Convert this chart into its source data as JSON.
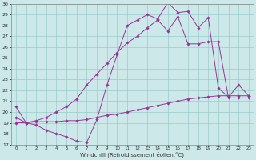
{
  "xlabel": "Windchill (Refroidissement éolien,°C)",
  "bg_color": "#cce8e8",
  "grid_color": "#99cccc",
  "line_color": "#993399",
  "xlim": [
    -0.5,
    23.5
  ],
  "ylim": [
    17,
    30
  ],
  "xticks": [
    0,
    1,
    2,
    3,
    4,
    5,
    6,
    7,
    8,
    9,
    10,
    11,
    12,
    13,
    14,
    15,
    16,
    17,
    18,
    19,
    20,
    21,
    22,
    23
  ],
  "yticks": [
    17,
    18,
    19,
    20,
    21,
    22,
    23,
    24,
    25,
    26,
    27,
    28,
    29,
    30
  ],
  "series1_x": [
    0,
    1,
    2,
    3,
    4,
    5,
    6,
    7,
    8,
    9,
    10,
    11,
    12,
    13,
    14,
    15,
    16,
    17,
    18,
    19,
    20,
    21,
    22,
    23
  ],
  "series1_y": [
    20.5,
    19.0,
    18.8,
    18.3,
    18.0,
    17.7,
    17.3,
    17.2,
    19.3,
    22.5,
    25.3,
    28.0,
    28.5,
    29.0,
    28.6,
    30.1,
    29.2,
    29.3,
    27.8,
    28.7,
    22.2,
    21.4,
    22.5,
    21.5
  ],
  "series2_x": [
    0,
    1,
    2,
    3,
    4,
    5,
    6,
    7,
    8,
    9,
    10,
    11,
    12,
    13,
    14,
    15,
    16,
    17,
    18,
    19,
    20,
    21,
    22,
    23
  ],
  "series2_y": [
    19.0,
    19.0,
    19.2,
    19.5,
    20.0,
    20.5,
    21.2,
    22.5,
    23.5,
    24.5,
    25.5,
    26.4,
    27.0,
    27.8,
    28.5,
    27.5,
    28.8,
    26.3,
    26.3,
    26.5,
    26.5,
    21.3,
    21.3,
    21.3
  ],
  "series3_x": [
    0,
    1,
    2,
    3,
    4,
    5,
    6,
    7,
    8,
    9,
    10,
    11,
    12,
    13,
    14,
    15,
    16,
    17,
    18,
    19,
    20,
    21,
    22,
    23
  ],
  "series3_y": [
    19.5,
    19.0,
    19.1,
    19.1,
    19.1,
    19.2,
    19.2,
    19.3,
    19.5,
    19.7,
    19.8,
    20.0,
    20.2,
    20.4,
    20.6,
    20.8,
    21.0,
    21.2,
    21.3,
    21.4,
    21.5,
    21.5,
    21.5,
    21.5
  ]
}
